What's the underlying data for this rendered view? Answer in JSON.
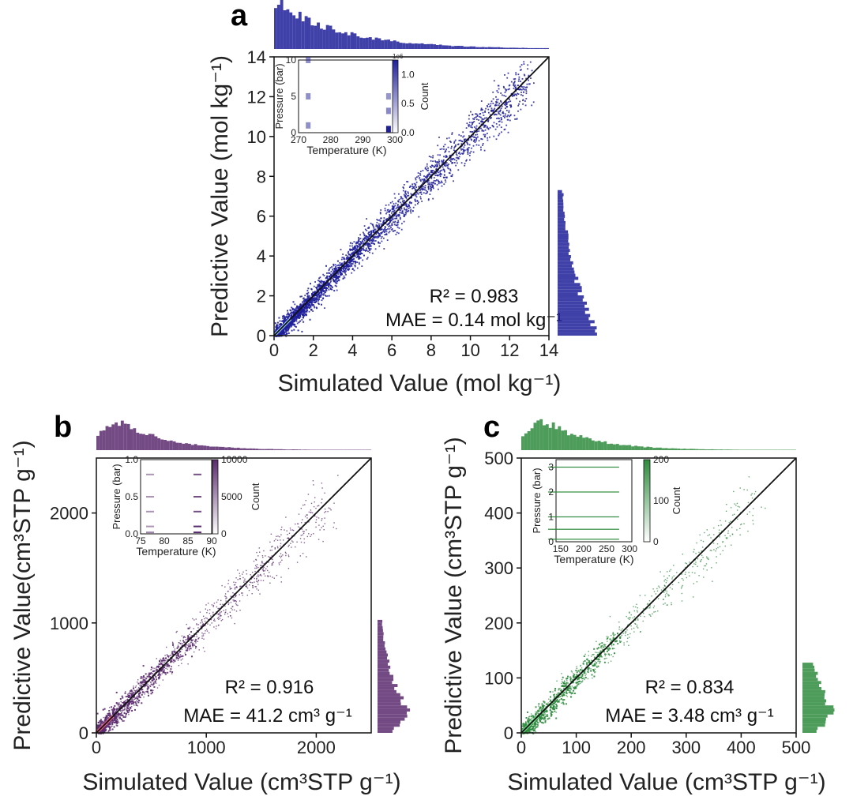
{
  "chart_data": [
    {
      "panel": "a",
      "type": "scatter",
      "title": "",
      "xlabel": "Simulated Value (mol kg⁻¹)",
      "ylabel": "Predictive Value (mol kg⁻¹)",
      "xlim": [
        0,
        14
      ],
      "ylim": [
        0,
        14
      ],
      "xticks": [
        "0",
        "2",
        "4",
        "6",
        "8",
        "10",
        "12",
        "14"
      ],
      "yticks": [
        "0",
        "2",
        "4",
        "6",
        "8",
        "10",
        "12",
        "14"
      ],
      "annotation_r2": "R² = 0.983",
      "annotation_mae": "MAE = 0.14 mol kg⁻¹",
      "color": "#1f1f9a",
      "diagonal": [
        [
          0,
          0
        ],
        [
          14,
          14
        ]
      ],
      "inset": {
        "type": "heatmap",
        "xlabel": "Temperature (K)",
        "ylabel": "Pressure (bar)",
        "xticks": [
          "270",
          "280",
          "290",
          "300"
        ],
        "yticks": [
          "0",
          "5",
          "10"
        ],
        "xlim": [
          270,
          300
        ],
        "ylim": [
          0,
          10
        ],
        "colorbar_label": "Count",
        "colorbar_ticks": [
          "0.0",
          "0.5",
          "1.0"
        ],
        "colorbar_multiplier": "1e6",
        "cells": [
          {
            "temperature": 273,
            "pressure": 10,
            "count": 0.4
          },
          {
            "temperature": 273,
            "pressure": 5,
            "count": 0.4
          },
          {
            "temperature": 273,
            "pressure": 1,
            "count": 0.4
          },
          {
            "temperature": 298,
            "pressure": 5,
            "count": 0.35
          },
          {
            "temperature": 298,
            "pressure": 3,
            "count": 0.45
          },
          {
            "temperature": 298,
            "pressure": 0.5,
            "count": 1.2
          }
        ]
      }
    },
    {
      "panel": "b",
      "type": "scatter",
      "title": "",
      "xlabel": "Simulated Value (cm³STP g⁻¹)",
      "ylabel": "Predictive Value(cm³STP g⁻¹)",
      "xlim": [
        0,
        2500
      ],
      "ylim": [
        0,
        2500
      ],
      "xticks": [
        "0",
        "1000",
        "2000"
      ],
      "yticks": [
        "0",
        "1000",
        "2000"
      ],
      "annotation_r2": "R² = 0.916",
      "annotation_mae": "MAE = 41.2 cm³ g⁻¹",
      "color": "#5a2a6e",
      "diagonal": [
        [
          0,
          0
        ],
        [
          2500,
          2500
        ]
      ],
      "inset": {
        "type": "heatmap",
        "xlabel": "Temperature (K)",
        "ylabel": "Pressure (bar)",
        "xticks": [
          "75",
          "80",
          "85",
          "90"
        ],
        "yticks": [
          "0.0",
          "0.5",
          "1.0"
        ],
        "xlim": [
          75,
          90
        ],
        "ylim": [
          0,
          1
        ],
        "colorbar_label": "Count",
        "colorbar_ticks": [
          "0",
          "5000",
          "10000"
        ],
        "cells": [
          {
            "temperature": 77,
            "pressure": 0.02,
            "count": 4000
          },
          {
            "temperature": 77,
            "pressure": 0.1,
            "count": 3000
          },
          {
            "temperature": 77,
            "pressure": 0.3,
            "count": 3000
          },
          {
            "temperature": 77,
            "pressure": 0.5,
            "count": 3000
          },
          {
            "temperature": 77,
            "pressure": 0.8,
            "count": 3000
          },
          {
            "temperature": 87,
            "pressure": 0.02,
            "count": 9000
          },
          {
            "temperature": 87,
            "pressure": 0.1,
            "count": 9000
          },
          {
            "temperature": 87,
            "pressure": 0.3,
            "count": 7000
          },
          {
            "temperature": 87,
            "pressure": 0.5,
            "count": 7000
          },
          {
            "temperature": 87,
            "pressure": 0.8,
            "count": 7000
          }
        ]
      }
    },
    {
      "panel": "c",
      "type": "scatter",
      "title": "",
      "xlabel": "Simulated Value (cm³STP g⁻¹)",
      "ylabel": "Predictive Value (cm³STP g⁻¹)",
      "xlim": [
        0,
        500
      ],
      "ylim": [
        0,
        500
      ],
      "xticks": [
        "0",
        "100",
        "200",
        "300",
        "400",
        "500"
      ],
      "yticks": [
        "0",
        "100",
        "200",
        "300",
        "400",
        "500"
      ],
      "annotation_r2": "R² = 0.834",
      "annotation_mae": "MAE = 3.48 cm³ g⁻¹",
      "color": "#2e8b3d",
      "diagonal": [
        [
          0,
          0
        ],
        [
          500,
          500
        ]
      ],
      "inset": {
        "type": "heatmap",
        "xlabel": "Temperature (K)",
        "ylabel": "Pressure (bar)",
        "xticks": [
          "150",
          "200",
          "250",
          "300"
        ],
        "yticks": [
          "0",
          "1",
          "2",
          "3"
        ],
        "xlim": [
          140,
          305
        ],
        "ylim": [
          0,
          3.3
        ],
        "colorbar_label": "Count",
        "colorbar_ticks": [
          "0",
          "100",
          "200"
        ],
        "cells": [
          {
            "temperature": 200,
            "pressure": 3,
            "count": 40
          },
          {
            "temperature": 200,
            "pressure": 2,
            "count": 40
          },
          {
            "temperature": 200,
            "pressure": 1,
            "count": 40
          },
          {
            "temperature": 200,
            "pressure": 0.5,
            "count": 40
          },
          {
            "temperature": 200,
            "pressure": 0.1,
            "count": 40
          }
        ]
      }
    }
  ]
}
